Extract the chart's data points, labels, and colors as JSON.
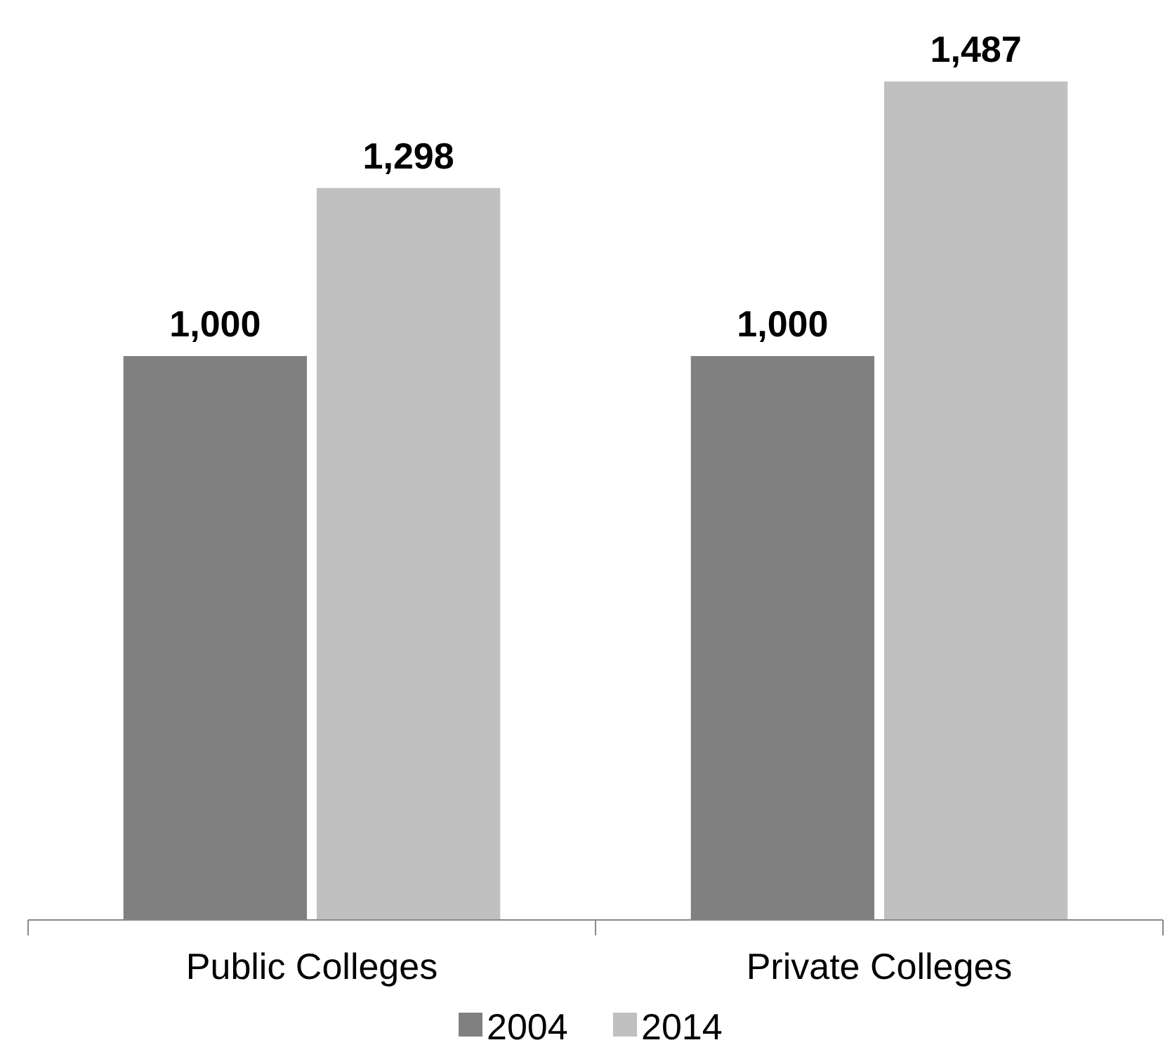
{
  "chart_data": {
    "type": "bar",
    "categories": [
      "Public Colleges",
      "Private Colleges"
    ],
    "series": [
      {
        "name": "2004",
        "color": "#808080",
        "values": [
          1000,
          1000
        ],
        "value_labels": [
          "1,000",
          "1,000"
        ]
      },
      {
        "name": "2014",
        "color": "#c0c0c0",
        "values": [
          1298,
          1487
        ],
        "value_labels": [
          "1,298",
          "1,487"
        ]
      }
    ],
    "legend": "bottom"
  }
}
